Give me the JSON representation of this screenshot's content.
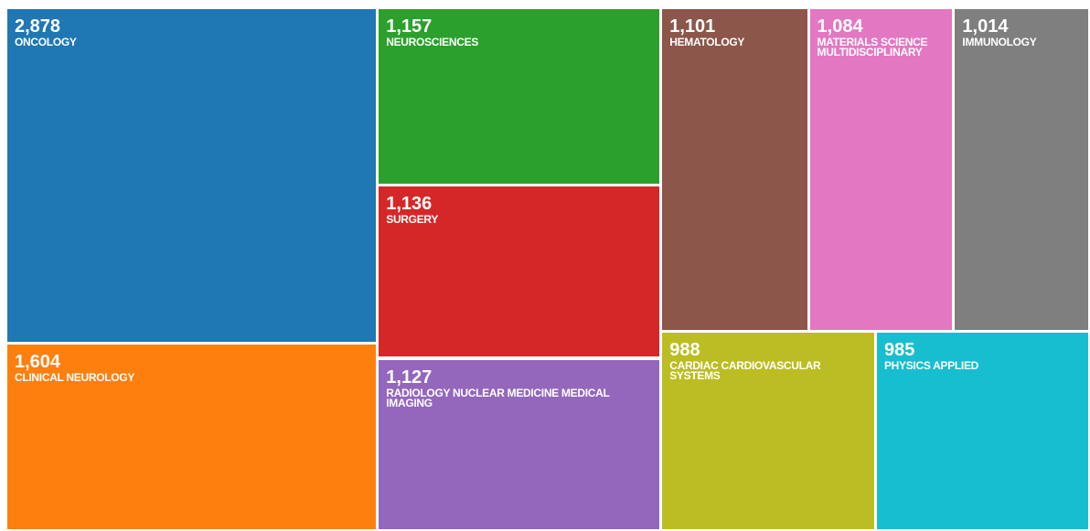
{
  "chart_data": {
    "type": "treemap",
    "categories": [
      "ONCOLOGY",
      "CLINICAL NEUROLOGY",
      "NEUROSCIENCES",
      "SURGERY",
      "RADIOLOGY NUCLEAR MEDICINE MEDICAL IMAGING",
      "HEMATOLOGY",
      "MATERIALS SCIENCE MULTIDISCIPLINARY",
      "IMMUNOLOGY",
      "CARDIAC CARDIOVASCULAR SYSTEMS",
      "PHYSICS APPLIED"
    ],
    "values": [
      2878,
      1604,
      1157,
      1136,
      1127,
      1101,
      1084,
      1014,
      988,
      985
    ],
    "value_labels": [
      "2,878",
      "1,604",
      "1,157",
      "1,136",
      "1,127",
      "1,101",
      "1,084",
      "1,014",
      "988",
      "985"
    ],
    "colors": [
      "#1f77b4",
      "#ff7f0e",
      "#2ca02c",
      "#d62728",
      "#9467bd",
      "#8c564b",
      "#e377c2",
      "#7f7f7f",
      "#bcbd22",
      "#17becf"
    ]
  }
}
